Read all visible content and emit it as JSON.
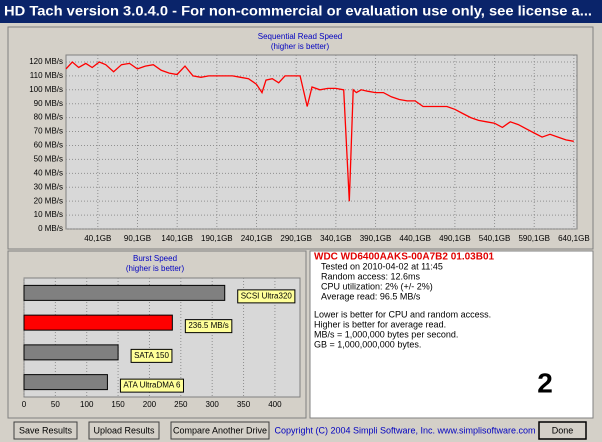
{
  "window_title": "HD Tach version 3.0.4.0  - For non-commercial or evaluation use only, see license a...",
  "chart_data": [
    {
      "type": "line",
      "title": "Sequential Read Speed",
      "subtitle": "(higher is better)",
      "color": "#ff0000",
      "grid": true,
      "x": [
        0,
        8,
        16,
        25,
        33,
        42,
        50,
        60,
        70,
        80,
        90,
        100,
        110,
        120,
        130,
        140,
        150,
        160,
        170,
        180,
        190,
        200,
        210,
        220,
        230,
        240,
        247,
        252,
        260,
        268,
        276,
        285,
        295,
        300,
        304,
        310,
        320,
        330,
        340,
        350,
        357,
        362,
        366,
        372,
        380,
        390,
        400,
        410,
        420,
        430,
        440,
        450,
        460,
        470,
        480,
        490,
        500,
        510,
        520,
        530,
        540,
        550,
        560,
        570,
        580,
        590,
        600,
        610,
        620,
        630,
        640
      ],
      "values": [
        115,
        120,
        116,
        119,
        116,
        120,
        118,
        113,
        118,
        119,
        115,
        117,
        118,
        114,
        112,
        111,
        117,
        110,
        109,
        110,
        110,
        110,
        110,
        109,
        108,
        104,
        98,
        107,
        108,
        105,
        110,
        110,
        110,
        98,
        88,
        102,
        100,
        101,
        101,
        100,
        20,
        100,
        98,
        100,
        99,
        98,
        98,
        95,
        93,
        92,
        92,
        88,
        88,
        88,
        88,
        86,
        83,
        80,
        78,
        77,
        76,
        73,
        77,
        75,
        72,
        69,
        66,
        68,
        66,
        64,
        63
      ],
      "xlim": [
        0,
        644
      ],
      "xticks": [
        {
          "value": 40.1,
          "label": "40,1GB"
        },
        {
          "value": 90.1,
          "label": "90,1GB"
        },
        {
          "value": 140.1,
          "label": "140,1GB"
        },
        {
          "value": 190.1,
          "label": "190,1GB"
        },
        {
          "value": 240.1,
          "label": "240,1GB"
        },
        {
          "value": 290.1,
          "label": "290,1GB"
        },
        {
          "value": 340.1,
          "label": "340,1GB"
        },
        {
          "value": 390.1,
          "label": "390,1GB"
        },
        {
          "value": 440.1,
          "label": "440,1GB"
        },
        {
          "value": 490.1,
          "label": "490,1GB"
        },
        {
          "value": 540.1,
          "label": "540,1GB"
        },
        {
          "value": 590.1,
          "label": "590,1GB"
        },
        {
          "value": 640.1,
          "label": "640,1GB"
        }
      ],
      "ylim": [
        0,
        125
      ],
      "yticks": [
        {
          "value": 0,
          "label": "0 MB/s"
        },
        {
          "value": 10,
          "label": "10 MB/s"
        },
        {
          "value": 20,
          "label": "20 MB/s"
        },
        {
          "value": 30,
          "label": "30 MB/s"
        },
        {
          "value": 40,
          "label": "40 MB/s"
        },
        {
          "value": 50,
          "label": "50 MB/s"
        },
        {
          "value": 60,
          "label": "60 MB/s"
        },
        {
          "value": 70,
          "label": "70 MB/s"
        },
        {
          "value": 80,
          "label": "80 MB/s"
        },
        {
          "value": 90,
          "label": "90 MB/s"
        },
        {
          "value": 100,
          "label": "100 MB/s"
        },
        {
          "value": 110,
          "label": "110 MB/s"
        },
        {
          "value": 120,
          "label": "120 MB/s"
        }
      ]
    },
    {
      "type": "barh",
      "title": "Burst Speed",
      "subtitle": "(higher is better)",
      "grid": true,
      "categories": [
        "SCSI Ultra320",
        null,
        "SATA 150",
        "ATA UltraDMA 6"
      ],
      "values": [
        320,
        236.5,
        150,
        133
      ],
      "value_labels": [
        null,
        "236.5 MB/s",
        null,
        null
      ],
      "colors": [
        "#808080",
        "#ff0000",
        "#808080",
        "#808080"
      ],
      "xlim": [
        0,
        440
      ],
      "xticks": [
        0,
        50,
        100,
        150,
        200,
        250,
        300,
        350,
        400
      ]
    }
  ],
  "drive_name": "WDC WD6400AAKS-00A7B2 01.03B01",
  "results": [
    "Tested on 2010-04-02 at 11:45",
    "Random access: 12.6ms",
    "CPU utilization: 2% (+/- 2%)",
    "Average read: 96.5 MB/s"
  ],
  "notes": [
    "Lower is better for CPU and random access.",
    "Higher is better for average read.",
    "MB/s = 1,000,000 bytes per second.",
    "GB = 1,000,000,000 bytes."
  ],
  "badge": "2",
  "buttons": [
    "Save Results",
    "Upload Results",
    "Compare Another Drive",
    "Done"
  ],
  "copyright": "Copyright (C) 2004 Simpli Software, Inc. www.simplisoftware.com"
}
